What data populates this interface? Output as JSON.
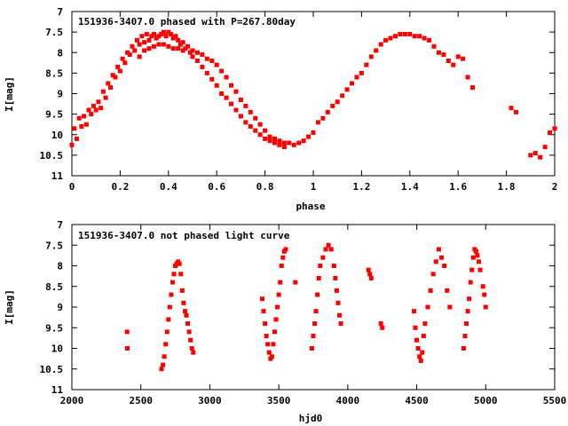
{
  "chart_data": [
    {
      "type": "scatter",
      "title": "151936-3407.0 phased with P=267.80day",
      "xlabel": "phase",
      "ylabel": "I[mag]",
      "xlim": [
        0,
        2
      ],
      "ylim": [
        7,
        11
      ],
      "y_inverted": true,
      "x_ticks": [
        0,
        0.2,
        0.4,
        0.6,
        0.8,
        1,
        1.2,
        1.4,
        1.6,
        1.8,
        2
      ],
      "x_tick_labels": [
        "0",
        "0.2",
        "0.4",
        "0.6",
        "0.8",
        "1",
        "1.2",
        "1.4",
        "1.6",
        "1.8",
        "2"
      ],
      "y_ticks": [
        7,
        7.5,
        8,
        8.5,
        9,
        9.5,
        10,
        10.5,
        11
      ],
      "y_tick_labels": [
        "7",
        "7.5",
        "8",
        "8.5",
        "9",
        "9.5",
        "10",
        "10.5",
        "11"
      ],
      "grid": false,
      "legend": "none",
      "marker_color": "#ff0000",
      "points": [
        [
          0.0,
          10.25
        ],
        [
          0.01,
          9.85
        ],
        [
          0.02,
          10.1
        ],
        [
          0.03,
          9.6
        ],
        [
          0.04,
          9.8
        ],
        [
          0.05,
          9.55
        ],
        [
          0.06,
          9.75
        ],
        [
          0.07,
          9.4
        ],
        [
          0.08,
          9.5
        ],
        [
          0.09,
          9.3
        ],
        [
          0.1,
          9.4
        ],
        [
          0.11,
          9.2
        ],
        [
          0.12,
          9.35
        ],
        [
          0.13,
          8.95
        ],
        [
          0.14,
          9.1
        ],
        [
          0.15,
          8.75
        ],
        [
          0.16,
          8.85
        ],
        [
          0.17,
          8.55
        ],
        [
          0.18,
          8.6
        ],
        [
          0.19,
          8.35
        ],
        [
          0.2,
          8.45
        ],
        [
          0.21,
          8.15
        ],
        [
          0.22,
          8.25
        ],
        [
          0.23,
          8.0
        ],
        [
          0.24,
          8.05
        ],
        [
          0.25,
          7.85
        ],
        [
          0.26,
          7.95
        ],
        [
          0.27,
          7.7
        ],
        [
          0.28,
          7.8
        ],
        [
          0.29,
          7.6
        ],
        [
          0.3,
          7.75
        ],
        [
          0.31,
          7.55
        ],
        [
          0.32,
          7.7
        ],
        [
          0.33,
          7.6
        ],
        [
          0.34,
          7.55
        ],
        [
          0.35,
          7.65
        ],
        [
          0.36,
          7.6
        ],
        [
          0.37,
          7.55
        ],
        [
          0.38,
          7.5
        ],
        [
          0.39,
          7.6
        ],
        [
          0.4,
          7.5
        ],
        [
          0.41,
          7.55
        ],
        [
          0.42,
          7.65
        ],
        [
          0.43,
          7.6
        ],
        [
          0.44,
          7.7
        ],
        [
          0.45,
          7.8
        ],
        [
          0.46,
          7.75
        ],
        [
          0.47,
          7.9
        ],
        [
          0.48,
          7.85
        ],
        [
          0.49,
          8.0
        ],
        [
          0.28,
          8.1
        ],
        [
          0.3,
          7.95
        ],
        [
          0.32,
          7.9
        ],
        [
          0.34,
          7.85
        ],
        [
          0.36,
          7.8
        ],
        [
          0.38,
          7.8
        ],
        [
          0.4,
          7.85
        ],
        [
          0.42,
          7.9
        ],
        [
          0.44,
          7.9
        ],
        [
          0.46,
          7.95
        ],
        [
          0.5,
          7.95
        ],
        [
          0.52,
          8.0
        ],
        [
          0.54,
          8.05
        ],
        [
          0.56,
          8.15
        ],
        [
          0.58,
          8.2
        ],
        [
          0.6,
          8.3
        ],
        [
          0.62,
          8.45
        ],
        [
          0.64,
          8.6
        ],
        [
          0.66,
          8.8
        ],
        [
          0.68,
          8.95
        ],
        [
          0.5,
          8.1
        ],
        [
          0.52,
          8.2
        ],
        [
          0.54,
          8.35
        ],
        [
          0.56,
          8.5
        ],
        [
          0.58,
          8.65
        ],
        [
          0.6,
          8.8
        ],
        [
          0.62,
          9.0
        ],
        [
          0.64,
          9.1
        ],
        [
          0.66,
          9.25
        ],
        [
          0.68,
          9.4
        ],
        [
          0.7,
          9.15
        ],
        [
          0.72,
          9.3
        ],
        [
          0.74,
          9.45
        ],
        [
          0.76,
          9.6
        ],
        [
          0.78,
          9.75
        ],
        [
          0.8,
          9.9
        ],
        [
          0.82,
          10.05
        ],
        [
          0.84,
          10.1
        ],
        [
          0.86,
          10.15
        ],
        [
          0.88,
          10.2
        ],
        [
          0.7,
          9.55
        ],
        [
          0.72,
          9.7
        ],
        [
          0.74,
          9.8
        ],
        [
          0.76,
          9.9
        ],
        [
          0.78,
          10.0
        ],
        [
          0.8,
          10.1
        ],
        [
          0.82,
          10.15
        ],
        [
          0.84,
          10.2
        ],
        [
          0.86,
          10.25
        ],
        [
          0.88,
          10.3
        ],
        [
          0.9,
          10.2
        ],
        [
          0.92,
          10.25
        ],
        [
          0.94,
          10.2
        ],
        [
          0.96,
          10.15
        ],
        [
          0.98,
          10.05
        ],
        [
          1.0,
          9.95
        ],
        [
          1.02,
          9.7
        ],
        [
          1.04,
          9.6
        ],
        [
          1.06,
          9.45
        ],
        [
          1.08,
          9.3
        ],
        [
          1.1,
          9.2
        ],
        [
          1.12,
          9.05
        ],
        [
          1.14,
          8.9
        ],
        [
          1.16,
          8.75
        ],
        [
          1.18,
          8.6
        ],
        [
          1.2,
          8.5
        ],
        [
          1.22,
          8.3
        ],
        [
          1.24,
          8.1
        ],
        [
          1.26,
          7.95
        ],
        [
          1.28,
          7.8
        ],
        [
          1.3,
          7.7
        ],
        [
          1.32,
          7.65
        ],
        [
          1.34,
          7.6
        ],
        [
          1.36,
          7.55
        ],
        [
          1.38,
          7.55
        ],
        [
          1.4,
          7.55
        ],
        [
          1.42,
          7.6
        ],
        [
          1.44,
          7.6
        ],
        [
          1.46,
          7.65
        ],
        [
          1.48,
          7.7
        ],
        [
          1.5,
          7.85
        ],
        [
          1.52,
          8.0
        ],
        [
          1.54,
          8.05
        ],
        [
          1.56,
          8.2
        ],
        [
          1.58,
          8.3
        ],
        [
          1.6,
          8.1
        ],
        [
          1.62,
          8.15
        ],
        [
          1.64,
          8.6
        ],
        [
          1.66,
          8.85
        ],
        [
          1.82,
          9.35
        ],
        [
          1.84,
          9.45
        ],
        [
          1.9,
          10.5
        ],
        [
          1.92,
          10.45
        ],
        [
          1.94,
          10.55
        ],
        [
          1.96,
          10.3
        ],
        [
          1.98,
          9.95
        ],
        [
          2.0,
          9.85
        ]
      ]
    },
    {
      "type": "scatter",
      "title": "151936-3407.0 not phased light curve",
      "xlabel": "hjd0",
      "ylabel": "I[mag]",
      "xlim": [
        2000,
        5500
      ],
      "ylim": [
        7,
        11
      ],
      "y_inverted": true,
      "x_ticks": [
        2000,
        2500,
        3000,
        3500,
        4000,
        4500,
        5000,
        5500
      ],
      "x_tick_labels": [
        "2000",
        "2500",
        "3000",
        "3500",
        "4000",
        "4500",
        "5000",
        "5500"
      ],
      "y_ticks": [
        7,
        7.5,
        8,
        8.5,
        9,
        9.5,
        10,
        10.5,
        11
      ],
      "y_tick_labels": [
        "7",
        "7.5",
        "8",
        "8.5",
        "9",
        "9.5",
        "10",
        "10.5",
        "11"
      ],
      "grid": false,
      "legend": "none",
      "marker_color": "#ff0000",
      "points": [
        [
          2400,
          9.6
        ],
        [
          2402,
          10.0
        ],
        [
          2650,
          10.5
        ],
        [
          2660,
          10.4
        ],
        [
          2670,
          10.2
        ],
        [
          2680,
          9.9
        ],
        [
          2690,
          9.6
        ],
        [
          2700,
          9.3
        ],
        [
          2710,
          9.0
        ],
        [
          2720,
          8.7
        ],
        [
          2730,
          8.4
        ],
        [
          2740,
          8.2
        ],
        [
          2750,
          8.0
        ],
        [
          2760,
          7.95
        ],
        [
          2770,
          7.9
        ],
        [
          2780,
          7.95
        ],
        [
          2790,
          8.2
        ],
        [
          2800,
          8.6
        ],
        [
          2810,
          8.9
        ],
        [
          2820,
          9.1
        ],
        [
          2830,
          9.2
        ],
        [
          2840,
          9.4
        ],
        [
          2850,
          9.6
        ],
        [
          2860,
          9.8
        ],
        [
          2870,
          10.0
        ],
        [
          2880,
          10.1
        ],
        [
          3380,
          8.8
        ],
        [
          3390,
          9.1
        ],
        [
          3400,
          9.4
        ],
        [
          3410,
          9.7
        ],
        [
          3420,
          9.9
        ],
        [
          3430,
          10.1
        ],
        [
          3440,
          10.25
        ],
        [
          3450,
          10.2
        ],
        [
          3460,
          9.9
        ],
        [
          3470,
          9.6
        ],
        [
          3480,
          9.3
        ],
        [
          3490,
          9.0
        ],
        [
          3500,
          8.7
        ],
        [
          3510,
          8.4
        ],
        [
          3520,
          8.0
        ],
        [
          3530,
          7.8
        ],
        [
          3540,
          7.65
        ],
        [
          3550,
          7.6
        ],
        [
          3620,
          8.4
        ],
        [
          3740,
          10.0
        ],
        [
          3750,
          9.7
        ],
        [
          3760,
          9.4
        ],
        [
          3770,
          9.1
        ],
        [
          3780,
          8.7
        ],
        [
          3790,
          8.3
        ],
        [
          3800,
          8.0
        ],
        [
          3820,
          7.8
        ],
        [
          3840,
          7.6
        ],
        [
          3860,
          7.5
        ],
        [
          3880,
          7.6
        ],
        [
          3900,
          8.0
        ],
        [
          3910,
          8.3
        ],
        [
          3920,
          8.6
        ],
        [
          3930,
          8.9
        ],
        [
          3940,
          9.2
        ],
        [
          3950,
          9.4
        ],
        [
          4150,
          8.1
        ],
        [
          4160,
          8.2
        ],
        [
          4170,
          8.3
        ],
        [
          4240,
          9.4
        ],
        [
          4250,
          9.5
        ],
        [
          4480,
          9.1
        ],
        [
          4490,
          9.5
        ],
        [
          4500,
          9.8
        ],
        [
          4510,
          10.0
        ],
        [
          4520,
          10.2
        ],
        [
          4530,
          10.3
        ],
        [
          4540,
          10.1
        ],
        [
          4550,
          9.7
        ],
        [
          4560,
          9.4
        ],
        [
          4580,
          9.0
        ],
        [
          4600,
          8.6
        ],
        [
          4620,
          8.2
        ],
        [
          4640,
          7.9
        ],
        [
          4660,
          7.6
        ],
        [
          4680,
          7.8
        ],
        [
          4700,
          8.0
        ],
        [
          4720,
          8.6
        ],
        [
          4740,
          9.0
        ],
        [
          4840,
          10.0
        ],
        [
          4850,
          9.7
        ],
        [
          4860,
          9.4
        ],
        [
          4870,
          9.1
        ],
        [
          4880,
          8.8
        ],
        [
          4890,
          8.4
        ],
        [
          4900,
          8.1
        ],
        [
          4910,
          7.8
        ],
        [
          4920,
          7.6
        ],
        [
          4930,
          7.65
        ],
        [
          4940,
          7.75
        ],
        [
          4950,
          7.9
        ],
        [
          4960,
          8.1
        ],
        [
          4980,
          8.5
        ],
        [
          4990,
          8.7
        ],
        [
          5000,
          9.0
        ]
      ]
    }
  ]
}
